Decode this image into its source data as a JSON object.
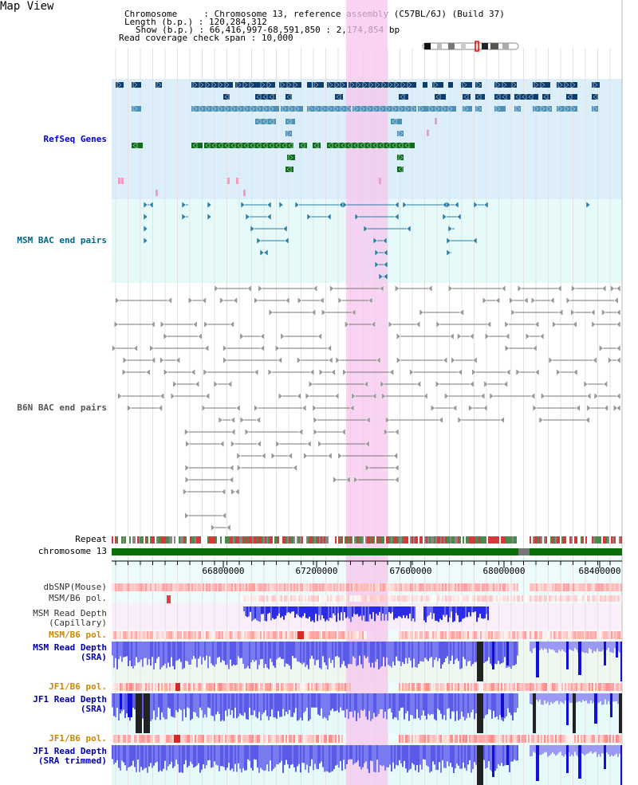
{
  "header": {
    "title": "Map View",
    "chromosome_label": "Chromosome",
    "chromosome_value": "Chromosome 13, reference assembly (C57BL/6J) (Build 37)",
    "length_label": "Length (b.p.)",
    "length_value": "120,284,312",
    "show_label": "Show (b.p.)",
    "show_value": "66,416,997-68,591,850 : 2,174,854 bp",
    "coverage_label": "Read coverage check span",
    "coverage_value": "10,000"
  },
  "tracks": {
    "refseq": "RefSeq Genes",
    "msm_bac": "MSM BAC end pairs",
    "b6n_bac": "B6N BAC end pairs",
    "repeat": "Repeat",
    "chromosome": "chromosome 13",
    "dbsnp": "dbSNP(Mouse)",
    "msm_b6_pol_1": "MSM/B6 pol.",
    "msm_depth_cap": "MSM Read Depth\n(Capillary)",
    "msm_b6_pol_2": "MSM/B6 pol.",
    "msm_depth_sra": "MSM Read Depth\n(SRA)",
    "jf1_b6_pol_1": "JF1/B6 pol.",
    "jf1_depth_sra": "JF1 Read Depth\n(SRA)",
    "jf1_b6_pol_2": "JF1/B6 pol.",
    "jf1_depth_trim": "JF1 Read Depth\n(SRA trimmed)"
  },
  "axis": {
    "ticks": [
      "66800000",
      "67200000",
      "67600000",
      "68000000",
      "68400000"
    ]
  },
  "colors": {
    "refseq_bg": "#ddeefb",
    "bac_bg": "#e6fafa",
    "highlight": "#f5c6ee",
    "refseq_label": "#0000cc",
    "msm_label": "#006688",
    "b6n_label": "#555555",
    "pol_label": "#cc8800",
    "depth_label": "#0000aa"
  }
}
